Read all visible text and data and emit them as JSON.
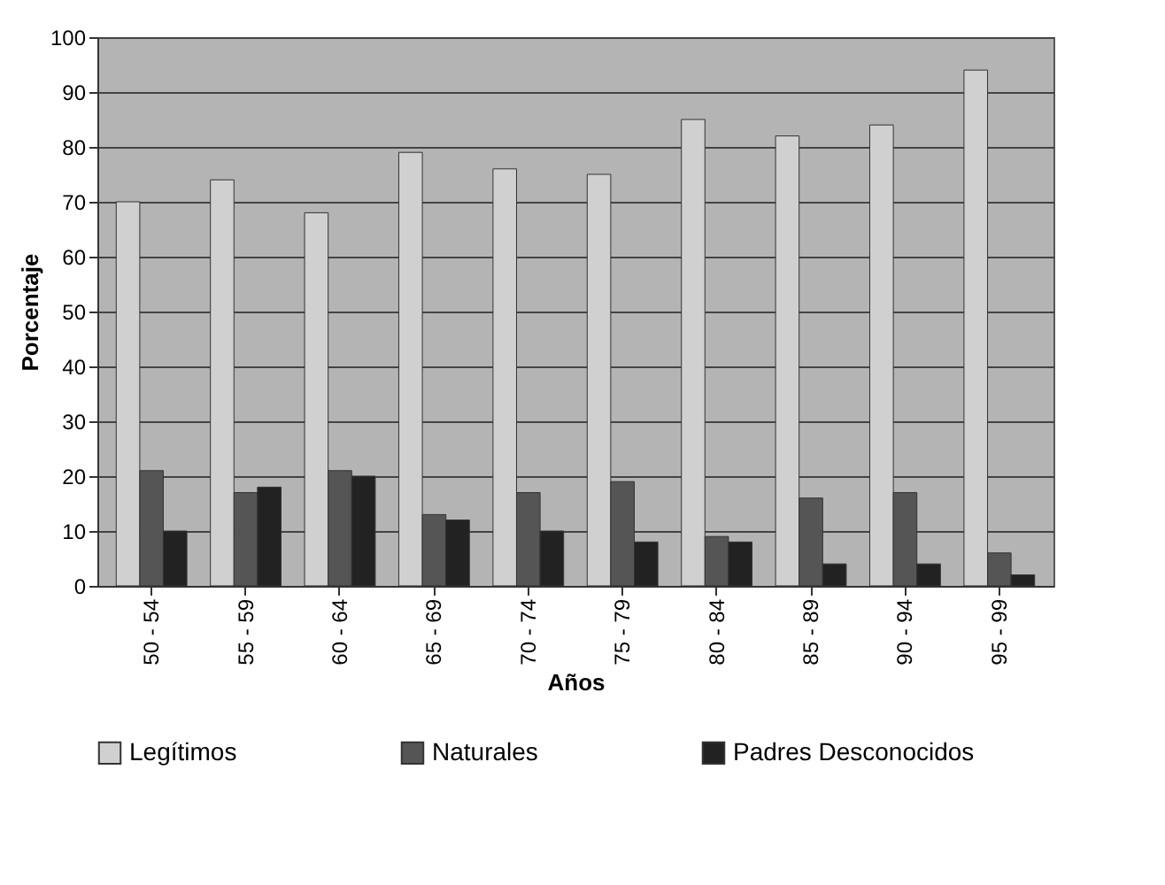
{
  "chart_data": {
    "type": "bar",
    "xlabel": "Años",
    "ylabel": "Porcentaje",
    "categories": [
      "50 - 54",
      "55 - 59",
      "60 - 64",
      "65 - 69",
      "70 - 74",
      "75 - 79",
      "80 - 84",
      "85 - 89",
      "90 - 94",
      "95 - 99"
    ],
    "series": [
      {
        "name": "Legítimos",
        "color": "#d0d0d0",
        "values": [
          70,
          74,
          68,
          79,
          76,
          75,
          85,
          82,
          84,
          94
        ]
      },
      {
        "name": "Naturales",
        "color": "#555555",
        "values": [
          21,
          17,
          21,
          13,
          17,
          19,
          9,
          16,
          17,
          6
        ]
      },
      {
        "name": "Padres Desconocidos",
        "color": "#222222",
        "values": [
          10,
          18,
          20,
          12,
          10,
          8,
          8,
          4,
          4,
          2
        ]
      }
    ],
    "ylim": [
      0,
      100
    ],
    "yticks": [
      0,
      10,
      20,
      30,
      40,
      50,
      60,
      70,
      80,
      90,
      100
    ],
    "grid": "y",
    "legend": "bottom"
  }
}
